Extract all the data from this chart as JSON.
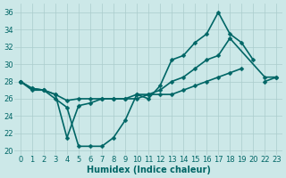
{
  "line1_x": [
    0,
    1,
    2,
    3,
    4,
    5,
    6,
    7,
    8,
    9,
    10,
    11,
    12,
    13,
    14,
    15,
    16,
    17,
    18,
    19,
    20
  ],
  "line1_y": [
    28,
    27,
    27,
    26,
    25,
    20.5,
    20.5,
    20.5,
    21.5,
    23.5,
    26.5,
    26,
    27.5,
    30.5,
    31,
    32.5,
    33.5,
    36,
    33.5,
    32.5,
    30.5
  ],
  "line2_x": [
    0,
    1,
    2,
    3,
    4,
    5,
    6,
    7,
    8,
    9,
    10,
    11,
    12,
    13,
    14,
    15,
    16,
    17,
    18,
    22,
    23
  ],
  "line2_y": [
    28,
    27.2,
    27,
    26.5,
    25.8,
    26,
    26,
    26,
    26,
    26,
    26.5,
    26.5,
    27,
    28,
    28.5,
    29.5,
    30.5,
    31,
    33,
    28.5,
    28.5
  ],
  "line3_x": [
    0,
    1,
    2,
    3,
    4,
    5,
    6,
    7,
    8,
    9,
    10,
    11,
    12,
    13,
    14,
    15,
    16,
    17,
    18,
    19,
    20,
    22,
    23
  ],
  "line3_y": [
    28,
    27.2,
    27,
    26.5,
    21.5,
    25.2,
    25.5,
    26,
    26,
    26,
    26,
    26.5,
    26.5,
    26.5,
    27,
    27.5,
    28,
    28.5,
    29,
    29.5,
    null,
    28,
    28.5
  ],
  "xticklabels": [
    "0",
    "1",
    "2",
    "3",
    "4",
    "5",
    "6",
    "7",
    "8",
    "9",
    "10",
    "11",
    "12",
    "13",
    "14",
    "15",
    "16",
    "17",
    "18",
    "19",
    "20",
    "22",
    "23"
  ],
  "yticks": [
    20,
    22,
    24,
    26,
    28,
    30,
    32,
    34,
    36
  ],
  "xlim": [
    -0.5,
    23.5
  ],
  "ylim": [
    19.5,
    37
  ],
  "xlabel": "Humidex (Indice chaleur)",
  "bg_color": "#cce8e8",
  "grid_color": "#aacccc",
  "line_color": "#006666",
  "text_color": "#006666",
  "xlabel_fontsize": 7,
  "tick_fontsize": 6
}
